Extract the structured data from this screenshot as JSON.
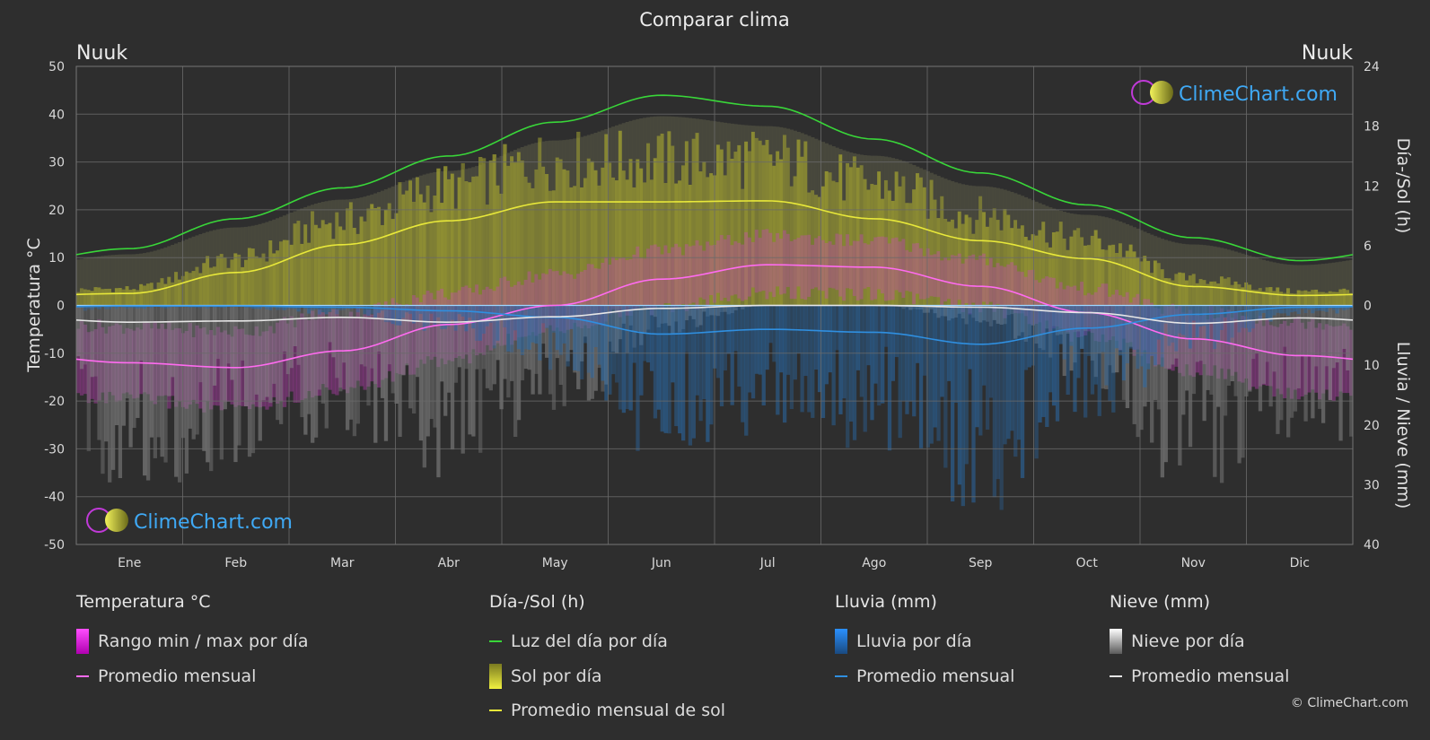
{
  "chart_data": {
    "type": "line",
    "title": "Comparar clima",
    "location_left": "Nuuk",
    "location_right": "Nuuk",
    "y_left_label": "Temperatura °C",
    "y_right_top_label": "Día-/Sol (h)",
    "y_right_bottom_label": "Lluvia / Nieve (mm)",
    "y_left_ticks": [
      50,
      40,
      30,
      20,
      10,
      0,
      -10,
      -20,
      -30,
      -40,
      -50
    ],
    "y_left_tick_labels": [
      "50",
      "40",
      "30",
      "20",
      "10",
      "0",
      "-10",
      "-20",
      "-30",
      "-40",
      "-50"
    ],
    "y_right_top_ticks": [
      24,
      18,
      12,
      6,
      0
    ],
    "y_right_top_tick_labels": [
      "24",
      "18",
      "12",
      "6",
      "0"
    ],
    "y_right_bottom_ticks": [
      10,
      20,
      30,
      40
    ],
    "y_right_bottom_tick_labels": [
      "10",
      "20",
      "30",
      "40"
    ],
    "ylim_temp": [
      -50,
      50
    ],
    "ylim_sun_h": [
      0,
      24
    ],
    "ylim_precip_mm": [
      0,
      40
    ],
    "months": [
      "Ene",
      "Feb",
      "Mar",
      "Abr",
      "May",
      "Jun",
      "Jul",
      "Ago",
      "Sep",
      "Oct",
      "Nov",
      "Dic"
    ],
    "grid": true,
    "series": [
      {
        "name": "Luz del día por día",
        "unit": "h",
        "color": "#39d639",
        "values": [
          5.7,
          8.7,
          11.8,
          15.0,
          18.4,
          21.1,
          20.0,
          16.7,
          13.3,
          10.1,
          6.8,
          4.5
        ]
      },
      {
        "name": "Promedio mensual de sol",
        "unit": "h",
        "color": "#e8e83a",
        "values": [
          1.2,
          3.3,
          6.1,
          8.5,
          10.4,
          10.4,
          10.5,
          8.7,
          6.5,
          4.7,
          1.9,
          1.0
        ]
      },
      {
        "name": "Promedio mensual",
        "group": "Temperatura °C",
        "unit": "°C",
        "color": "#ff6bf0",
        "values": [
          -12.0,
          -13.0,
          -9.5,
          -4.0,
          0.0,
          5.5,
          8.5,
          8.0,
          4.0,
          -1.5,
          -7.0,
          -10.5
        ]
      },
      {
        "name": "Promedio mensual",
        "group": "Lluvia (mm)",
        "unit": "mm",
        "color": "#2f8fe0",
        "values": [
          0.1,
          0.1,
          0.3,
          0.9,
          2.0,
          4.8,
          4.0,
          4.5,
          6.5,
          3.8,
          1.5,
          0.3
        ]
      },
      {
        "name": "Promedio mensual",
        "group": "Nieve (mm)",
        "unit": "mm",
        "color": "#e6e6e6",
        "values": [
          2.8,
          2.6,
          2.0,
          2.8,
          1.9,
          0.5,
          0.0,
          0.0,
          0.3,
          1.2,
          3.0,
          2.1
        ]
      }
    ],
    "temp_range_min": [
      -18,
      -20,
      -16,
      -10,
      -3,
      1,
      4,
      4,
      1,
      -5,
      -12,
      -17
    ],
    "temp_range_max": [
      -6,
      -7,
      -3,
      1,
      5,
      10,
      13,
      12,
      8,
      2,
      -3,
      -5
    ]
  },
  "legend": {
    "groups": [
      {
        "title": "Temperatura °C",
        "items": [
          {
            "kind": "box",
            "label": "Rango min / max por día",
            "color": "#e020e0"
          },
          {
            "kind": "line",
            "label": "Promedio mensual",
            "color": "#ff6bf0"
          }
        ]
      },
      {
        "title": "Día-/Sol (h)",
        "items": [
          {
            "kind": "line",
            "label": "Luz del día por día",
            "color": "#39d639"
          },
          {
            "kind": "box",
            "label": "Sol por día",
            "color": "#c8c830"
          },
          {
            "kind": "line",
            "label": "Promedio mensual de sol",
            "color": "#e8e83a"
          }
        ]
      },
      {
        "title": "Lluvia (mm)",
        "items": [
          {
            "kind": "box",
            "label": "Lluvia por día",
            "color": "#1f7fd0"
          },
          {
            "kind": "line",
            "label": "Promedio mensual",
            "color": "#2f8fe0"
          }
        ]
      },
      {
        "title": "Nieve (mm)",
        "items": [
          {
            "kind": "box",
            "label": "Nieve por día",
            "color": "#e6e6e6"
          },
          {
            "kind": "line",
            "label": "Promedio mensual",
            "color": "#e6e6e6"
          }
        ]
      }
    ]
  },
  "watermark": "ClimeChart.com",
  "copyright": "© ClimeChart.com"
}
